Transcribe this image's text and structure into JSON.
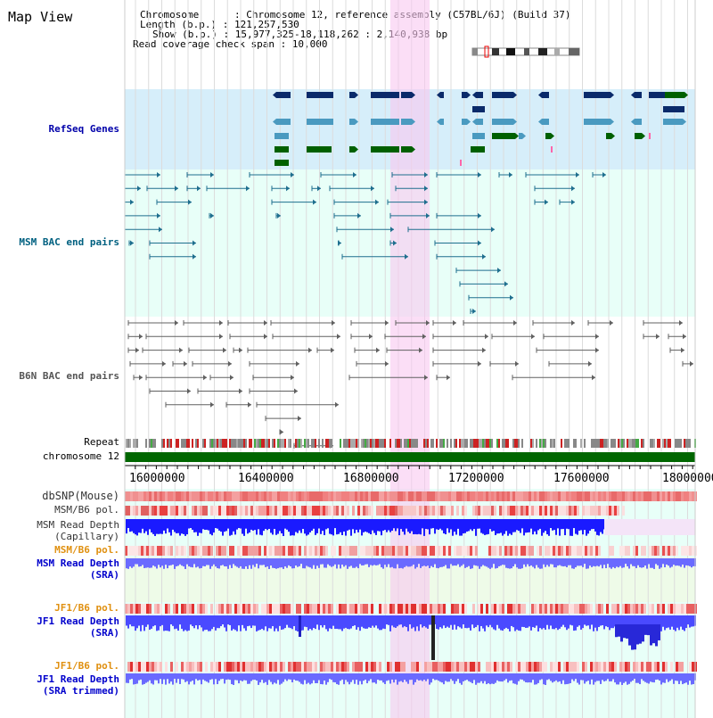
{
  "app": {
    "title": "Map View"
  },
  "info": {
    "chromosome": "Chromosome      : Chromosome 12, reference assembly (C57BL/6J) (Build 37)",
    "length": "Length (b.p.) : 121,257,530",
    "show": "Show (b.p.) : 15,977,325-18,118,262 : 2,140,938 bp",
    "coverage": "Read coverage check span : 10,000"
  },
  "tracks": {
    "refseq": "RefSeq Genes",
    "msm_bac": "MSM BAC end pairs",
    "b6n_bac": "B6N BAC end pairs",
    "repeat": "Repeat",
    "chromosome": "chromosome 12",
    "dbsnp": "dbSNP(Mouse)",
    "msm_pol": "MSM/B6 pol.",
    "msm_depth_cap_1": "MSM Read Depth",
    "msm_depth_cap_2": "(Capillary)",
    "msm_pol_2": "MSM/B6 pol.",
    "msm_depth_sra_1": "MSM Read Depth",
    "msm_depth_sra_2": "(SRA)",
    "jf1_pol": "JF1/B6 pol.",
    "jf1_depth_1": "JF1 Read Depth",
    "jf1_depth_2": "(SRA)",
    "jf1_pol_2": "JF1/B6 pol.",
    "jf1_trim_1": "JF1 Read Depth",
    "jf1_trim_2": "(SRA trimmed)"
  },
  "axis": {
    "ticks": [
      "16000000",
      "16400000",
      "16800000",
      "17200000",
      "17600000",
      "18000000"
    ]
  },
  "colors": {
    "refseq_bg": "#d6eefa",
    "msm_bg": "#e8fff8",
    "highlight": "#f8c8f0",
    "dark_navy": "#0a2a6a",
    "teal": "#4a9ac0",
    "green": "#006000",
    "chrom_green": "#006600",
    "bac_line": "#1e6e8e",
    "b6n_line": "#606060",
    "snp_red": "#e06060",
    "depth_blue": "#1a1aff",
    "depth_light": "#7070ff",
    "orange_label": "#e09010",
    "blue_label": "#0000cc",
    "msm_label": "#006080"
  }
}
